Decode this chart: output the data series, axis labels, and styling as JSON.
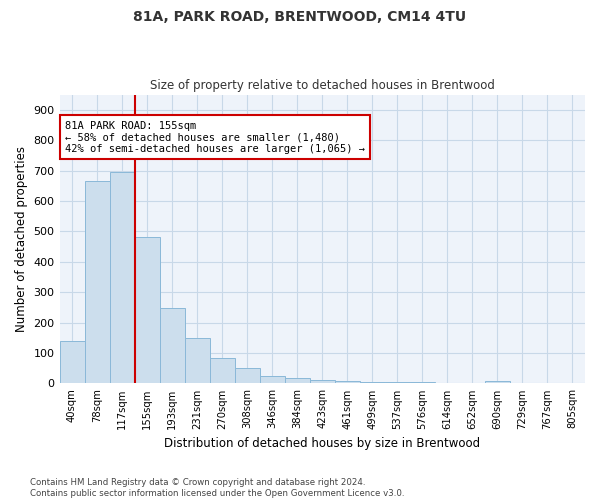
{
  "title": "81A, PARK ROAD, BRENTWOOD, CM14 4TU",
  "subtitle": "Size of property relative to detached houses in Brentwood",
  "xlabel": "Distribution of detached houses by size in Brentwood",
  "ylabel": "Number of detached properties",
  "categories": [
    "40sqm",
    "78sqm",
    "117sqm",
    "155sqm",
    "193sqm",
    "231sqm",
    "270sqm",
    "308sqm",
    "346sqm",
    "384sqm",
    "423sqm",
    "461sqm",
    "499sqm",
    "537sqm",
    "576sqm",
    "614sqm",
    "652sqm",
    "690sqm",
    "729sqm",
    "767sqm",
    "805sqm"
  ],
  "bar_heights": [
    140,
    667,
    695,
    483,
    247,
    148,
    85,
    51,
    23,
    18,
    10,
    9,
    5,
    5,
    5,
    0,
    0,
    8,
    0,
    0,
    0
  ],
  "bar_color": "#ccdeed",
  "bar_edge_color": "#8ab8d8",
  "vline_x_index": 3,
  "vline_color": "#cc0000",
  "annotation_text": "81A PARK ROAD: 155sqm\n← 58% of detached houses are smaller (1,480)\n42% of semi-detached houses are larger (1,065) →",
  "annotation_box_color": "#cc0000",
  "ylim": [
    0,
    950
  ],
  "yticks": [
    0,
    100,
    200,
    300,
    400,
    500,
    600,
    700,
    800,
    900
  ],
  "grid_color": "#c8d8e8",
  "bg_color": "#eef3fa",
  "footnote": "Contains HM Land Registry data © Crown copyright and database right 2024.\nContains public sector information licensed under the Open Government Licence v3.0."
}
